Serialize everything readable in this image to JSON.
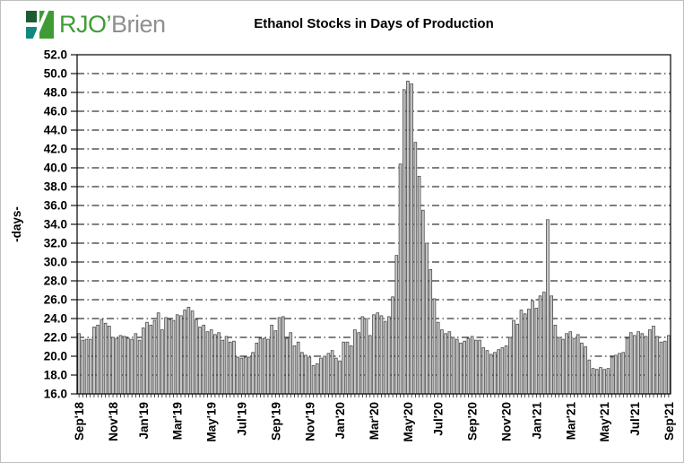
{
  "header": {
    "logo": {
      "text_primary": "RJO’",
      "text_secondary": "Brien"
    },
    "title": "Ethanol Stocks in Days of Production"
  },
  "colors": {
    "logo_dark_green": "#1d5c33",
    "logo_teal": "#0f8a7e",
    "logo_green": "#3f9c35",
    "logo_gray": "#8f8f8f",
    "bar_fill": "#c9c9c9",
    "bar_stroke": "#4a4a4a",
    "gridline": "#000000",
    "axis": "#000000"
  },
  "chart_data": {
    "type": "bar",
    "title": "Ethanol Stocks in Days of Production",
    "xlabel": "",
    "ylabel": "-days-",
    "ylim": [
      16.0,
      52.0
    ],
    "ytick_step": 2.0,
    "grid": "dash-dot horizontal gridlines every 2.0, drawn behind bars",
    "legend_position": "none",
    "frequency": "weekly",
    "x_tick_labels": [
      "Sep'18",
      "Nov'18",
      "Jan'19",
      "Mar'19",
      "May'19",
      "Jul'19",
      "Sep'19",
      "Nov'19",
      "Jan'20",
      "Mar'20",
      "May'20",
      "Jul'20",
      "Sep'20",
      "Nov'20",
      "Jan'21",
      "Mar'21",
      "May'21",
      "Jul'21",
      "Sep'21"
    ],
    "values": [
      22.4,
      21.7,
      21.8,
      21.8,
      23.1,
      23.3,
      23.9,
      23.5,
      23.2,
      22.0,
      21.9,
      22.2,
      22.1,
      21.9,
      21.8,
      22.4,
      21.7,
      23.0,
      23.6,
      23.3,
      23.8,
      24.6,
      22.8,
      24.1,
      23.9,
      23.8,
      24.4,
      24.3,
      24.9,
      25.2,
      24.8,
      23.9,
      23.1,
      23.3,
      22.6,
      22.8,
      22.3,
      22.5,
      21.7,
      22.1,
      21.5,
      21.6,
      19.9,
      19.8,
      19.9,
      19.9,
      20.4,
      21.4,
      21.9,
      21.9,
      21.8,
      23.3,
      22.7,
      24.1,
      24.2,
      21.9,
      22.5,
      21.1,
      21.5,
      20.4,
      20.1,
      19.9,
      19.0,
      19.2,
      19.8,
      20.0,
      20.3,
      20.6,
      19.8,
      19.5,
      21.5,
      21.5,
      21.1,
      22.8,
      22.5,
      24.2,
      24.0,
      22.2,
      24.4,
      24.6,
      24.3,
      23.7,
      24.2,
      26.3,
      30.7,
      40.4,
      48.3,
      49.2,
      48.9,
      42.7,
      39.1,
      35.5,
      32.0,
      29.2,
      26.1,
      23.6,
      22.8,
      22.4,
      22.6,
      22.0,
      21.8,
      21.4,
      21.6,
      21.9,
      22.1,
      21.7,
      21.7,
      20.9,
      20.6,
      20.2,
      20.4,
      20.7,
      20.9,
      21.1,
      22.0,
      23.8,
      23.4,
      24.9,
      24.5,
      25.0,
      25.9,
      25.1,
      26.4,
      26.8,
      34.5,
      26.4,
      23.3,
      22.0,
      21.8,
      22.4,
      22.6,
      21.9,
      22.3,
      21.4,
      21.0,
      19.6,
      18.7,
      18.6,
      18.8,
      18.6,
      18.7,
      19.9,
      20.1,
      20.3,
      20.4,
      21.9,
      22.5,
      22.2,
      22.6,
      22.4,
      22.1,
      22.8,
      23.2,
      22.1,
      21.5,
      21.6,
      22.2
    ]
  }
}
